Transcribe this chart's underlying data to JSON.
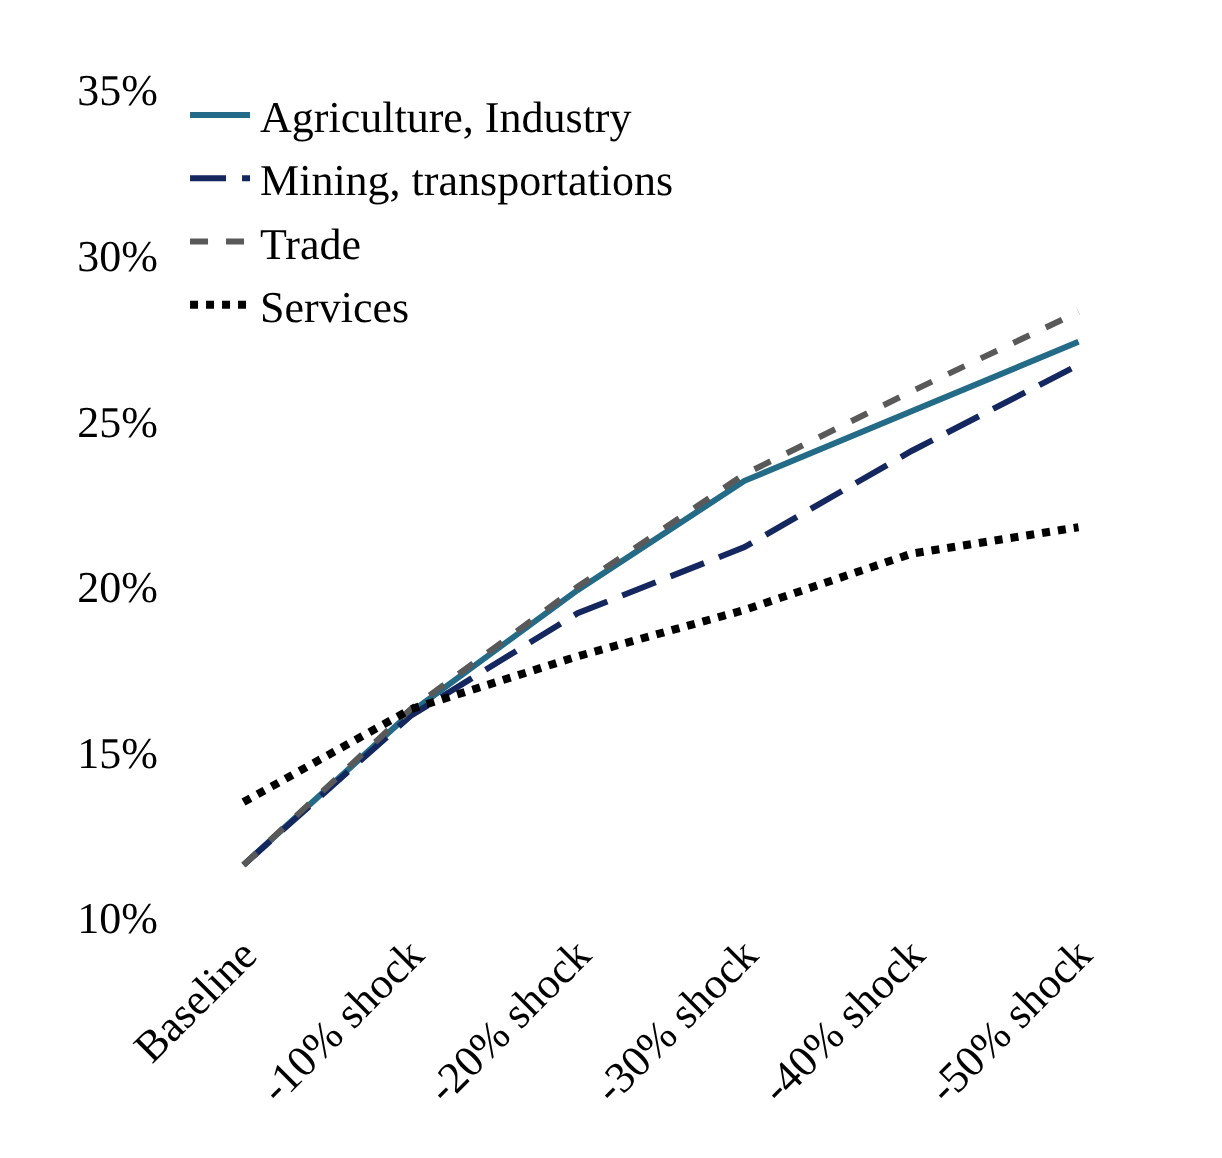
{
  "chart_data": {
    "type": "line",
    "categories": [
      "Baseline",
      "-10% shock",
      "-20% shock",
      "-30% shock",
      "-40% shock",
      "-50% shock"
    ],
    "series": [
      {
        "name": "Agriculture, Industry",
        "color": "#236b87",
        "line_style": "solid",
        "values": [
          11.6,
          16.2,
          19.9,
          23.2,
          25.3,
          27.4
        ]
      },
      {
        "name": "Mining, transportations",
        "color": "#14275e",
        "line_style": "dashed",
        "values": [
          11.6,
          16.1,
          19.2,
          21.2,
          24.1,
          26.7
        ]
      },
      {
        "name": "Trade",
        "color": "#595959",
        "line_style": "dashed",
        "values": [
          11.6,
          16.3,
          20.0,
          23.4,
          25.9,
          28.3
        ]
      },
      {
        "name": "Services",
        "color": "#000000",
        "line_style": "dotted",
        "values": [
          13.5,
          16.3,
          17.9,
          19.3,
          21.0,
          21.8
        ]
      }
    ],
    "ylim": [
      10,
      35
    ],
    "yticks": [
      {
        "value": 10,
        "label": "10%"
      },
      {
        "value": 15,
        "label": "15%"
      },
      {
        "value": 20,
        "label": "20%"
      },
      {
        "value": 25,
        "label": "25%"
      },
      {
        "value": 30,
        "label": "30%"
      },
      {
        "value": 35,
        "label": "35%"
      }
    ],
    "legend": "top left",
    "marker": "none"
  }
}
